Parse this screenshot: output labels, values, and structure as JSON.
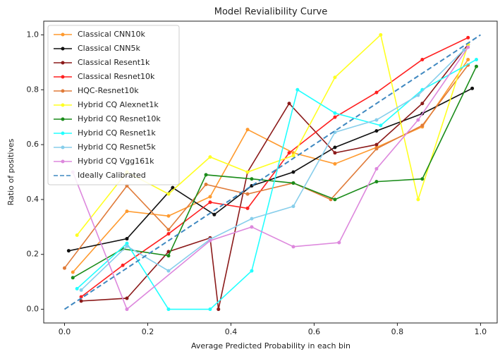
{
  "chart_data": {
    "type": "line",
    "title": "Model Revialibility Curve",
    "x_label": "Average Predicted Probability in each bin",
    "y_label": "Ratio of positives",
    "xlim": [
      -0.05,
      1.04
    ],
    "ylim": [
      -0.05,
      1.05
    ],
    "xticks": [
      {
        "value": 0,
        "label": "0.0"
      },
      0.2,
      0.4,
      0.6,
      0.8,
      {
        "value": 1,
        "label": "1.0"
      }
    ],
    "yticks": [
      {
        "value": 0,
        "label": "0.0"
      },
      0.2,
      0.4,
      0.6,
      0.8,
      {
        "value": 1,
        "label": "1.0"
      }
    ],
    "legend": "upper left",
    "series": [
      {
        "name": "Classical CNN10k",
        "color": "#ff9a2e",
        "x": [
          0.02,
          0.15,
          0.25,
          0.35,
          0.44,
          0.55,
          0.65,
          0.75,
          0.86,
          0.97
        ],
        "values": [
          0.135,
          0.357,
          0.34,
          0.41,
          0.655,
          0.57,
          0.53,
          0.59,
          0.665,
          0.91
        ]
      },
      {
        "name": "Classical CNN5k",
        "color": "#111111",
        "x": [
          0.01,
          0.15,
          0.26,
          0.36,
          0.45,
          0.55,
          0.65,
          0.75,
          0.86,
          0.98
        ],
        "values": [
          0.213,
          0.257,
          0.443,
          0.345,
          0.45,
          0.5,
          0.59,
          0.65,
          0.713,
          0.805
        ]
      },
      {
        "name": "Classical Resent1k",
        "color": "#8b1a1a",
        "x": [
          0.04,
          0.15,
          0.25,
          0.35,
          0.37,
          0.44,
          0.54,
          0.65,
          0.75,
          0.86,
          0.97
        ],
        "values": [
          0.03,
          0.04,
          0.21,
          0.26,
          0.0,
          0.5,
          0.75,
          0.57,
          0.6,
          0.75,
          0.965
        ]
      },
      {
        "name": "Classical Resnet10k",
        "color": "#ff2020",
        "x": [
          0.04,
          0.14,
          0.25,
          0.35,
          0.44,
          0.54,
          0.65,
          0.75,
          0.86,
          0.97
        ],
        "values": [
          0.045,
          0.16,
          0.275,
          0.39,
          0.368,
          0.57,
          0.7,
          0.79,
          0.91,
          0.99
        ]
      },
      {
        "name": "HQC-Resnet10k",
        "color": "#e07b39",
        "x": [
          0.0,
          0.15,
          0.25,
          0.34,
          0.44,
          0.55,
          0.64,
          0.75,
          0.86,
          0.97
        ],
        "values": [
          0.15,
          0.45,
          0.29,
          0.455,
          0.42,
          0.46,
          0.4,
          0.585,
          0.67,
          0.89
        ]
      },
      {
        "name": "Hybrid CQ Alexnet1k",
        "color": "#ffff22",
        "x": [
          0.03,
          0.15,
          0.25,
          0.35,
          0.44,
          0.55,
          0.65,
          0.76,
          0.85,
          0.97
        ],
        "values": [
          0.27,
          0.5,
          0.42,
          0.555,
          0.5,
          0.56,
          0.845,
          1.0,
          0.4,
          0.965
        ]
      },
      {
        "name": "Hybrid CQ Resnet10k",
        "color": "#1a8c1a",
        "x": [
          0.02,
          0.14,
          0.25,
          0.34,
          0.45,
          0.55,
          0.65,
          0.75,
          0.86,
          0.99
        ],
        "values": [
          0.115,
          0.22,
          0.195,
          0.49,
          0.475,
          0.46,
          0.4,
          0.465,
          0.475,
          0.885
        ]
      },
      {
        "name": "Hybrid CQ Resnet1k",
        "color": "#22ffff",
        "x": [
          0.03,
          0.15,
          0.25,
          0.35,
          0.45,
          0.56,
          0.65,
          0.76,
          0.86,
          0.99
        ],
        "values": [
          0.075,
          0.24,
          0.0,
          0.0,
          0.14,
          0.8,
          0.715,
          0.67,
          0.8,
          0.91
        ]
      },
      {
        "name": "Hybrid CQ Resnet5k",
        "color": "#87ceeb",
        "x": [
          0.04,
          0.15,
          0.25,
          0.35,
          0.45,
          0.55,
          0.65,
          0.75,
          0.85,
          0.96
        ],
        "values": [
          0.07,
          0.23,
          0.14,
          0.255,
          0.33,
          0.375,
          0.645,
          0.69,
          0.78,
          0.945
        ]
      },
      {
        "name": "Hybrid CQ Vgg161k",
        "color": "#dd88dd",
        "x": [
          0.02,
          0.15,
          0.35,
          0.45,
          0.55,
          0.66,
          0.75,
          0.85,
          0.97
        ],
        "values": [
          0.5,
          0.0,
          0.25,
          0.3,
          0.228,
          0.243,
          0.512,
          0.69,
          0.955
        ]
      },
      {
        "name": "Ideally Calibrated",
        "color": "#3f88c0",
        "linestyle": "dashed",
        "markers": false,
        "x": [
          0,
          1
        ],
        "values": [
          0,
          1
        ]
      }
    ]
  }
}
